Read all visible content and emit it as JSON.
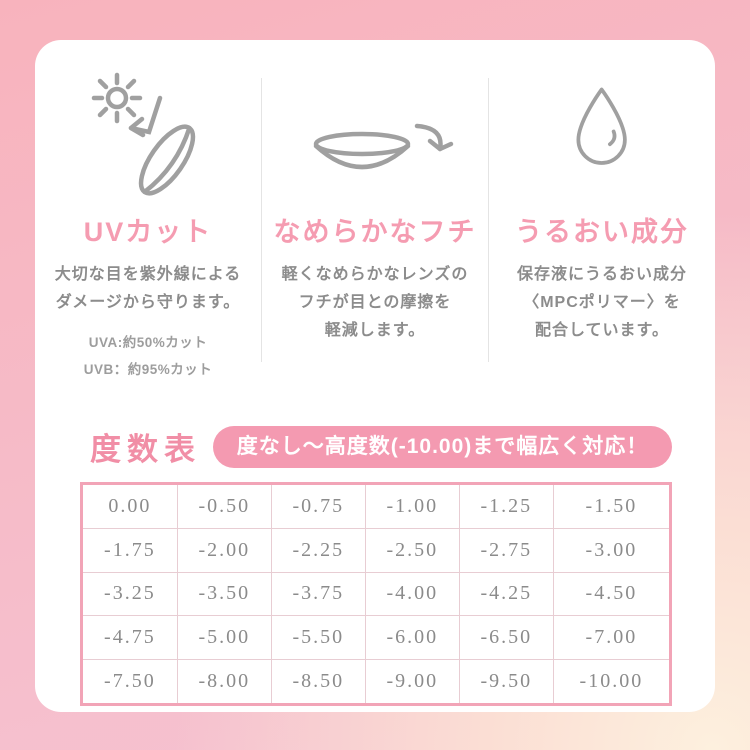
{
  "colors": {
    "accent_pink": "#f59cb1",
    "heading_pink": "#f18ea6",
    "banner_pink": "#f49ab1",
    "table_border_pink": "#f2a4b7",
    "table_grid_pink": "#e8cdd3",
    "body_gray": "#8c8c8c",
    "icon_gray": "#a0a0a0"
  },
  "features": [
    {
      "icon": "uv-sun-lens-icon",
      "title": "UVカット",
      "body_lines": [
        "大切な目を紫外線による",
        "ダメージから守ります。"
      ],
      "notes": [
        "UVA:約50%カット",
        "UVB：約95%カット"
      ]
    },
    {
      "icon": "smooth-edge-lens-icon",
      "title": "なめらかなフチ",
      "body_lines": [
        "軽くなめらかなレンズの",
        "フチが目との摩擦を",
        "軽減します。"
      ],
      "notes": []
    },
    {
      "icon": "water-drop-icon",
      "title": "うるおい成分",
      "body_lines": [
        "保存液にうるおい成分",
        "〈MPCポリマー〉を",
        "配合しています。"
      ],
      "notes": []
    }
  ],
  "power_table": {
    "heading": "度数表",
    "banner": "度なし〜高度数(-10.00)まで幅広く対応！",
    "rows": [
      [
        "0.00",
        "-0.50",
        "-0.75",
        "-1.00",
        "-1.25",
        "-1.50"
      ],
      [
        "-1.75",
        "-2.00",
        "-2.25",
        "-2.50",
        "-2.75",
        "-3.00"
      ],
      [
        "-3.25",
        "-3.50",
        "-3.75",
        "-4.00",
        "-4.25",
        "-4.50"
      ],
      [
        "-4.75",
        "-5.00",
        "-5.50",
        "-6.00",
        "-6.50",
        "-7.00"
      ],
      [
        "-7.50",
        "-8.00",
        "-8.50",
        "-9.00",
        "-9.50",
        "-10.00"
      ]
    ]
  }
}
